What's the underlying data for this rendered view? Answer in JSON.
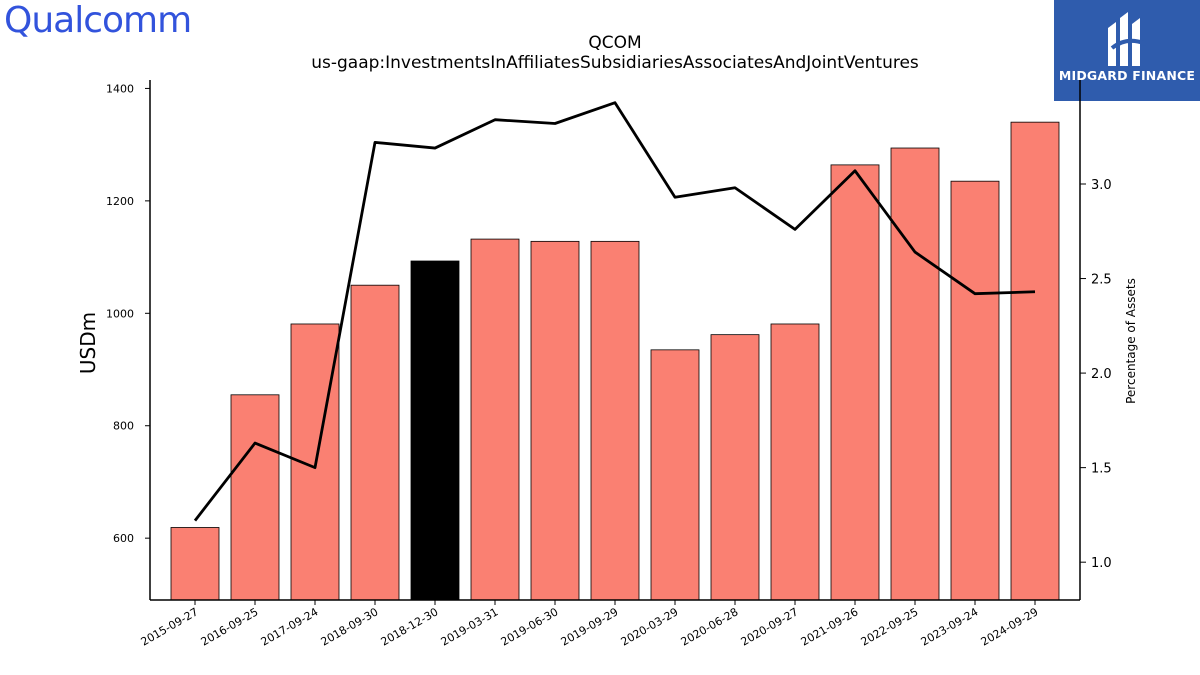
{
  "brand": {
    "left_logo": "Qualcomm",
    "right_logo": "MIDGARD FINANCE"
  },
  "chart_data": {
    "type": "bar",
    "title": "QCOM",
    "subtitle": "us-gaap:InvestmentsInAffiliatesSubsidiariesAssociatesAndJointVentures",
    "ylabel": "USDm",
    "y2label": "Percentage of Assets",
    "ylim": [
      490,
      1415
    ],
    "y2lim": [
      0.8,
      3.55
    ],
    "yticks": [
      600,
      800,
      1000,
      1200,
      1400
    ],
    "y2ticks": [
      "1.0",
      "1.5",
      "2.0",
      "2.5",
      "3.0"
    ],
    "categories": [
      "2015-09-27",
      "2016-09-25",
      "2017-09-24",
      "2018-09-30",
      "2018-12-30",
      "2019-03-31",
      "2019-06-30",
      "2019-09-29",
      "2020-03-29",
      "2020-06-28",
      "2020-09-27",
      "2021-09-26",
      "2022-09-25",
      "2023-09-24",
      "2024-09-29"
    ],
    "series": [
      {
        "type": "bar",
        "values": [
          619,
          855,
          981,
          1050,
          1093,
          1132,
          1128,
          1128,
          935,
          962,
          981,
          1264,
          1294,
          1235,
          1340
        ],
        "color": "#fa8072",
        "highlight_index": 4,
        "highlight_color": "#000000"
      },
      {
        "type": "line",
        "axis": "right",
        "values": [
          1.22,
          1.63,
          1.5,
          3.22,
          3.19,
          3.34,
          3.32,
          3.43,
          2.93,
          2.98,
          2.76,
          3.07,
          2.64,
          2.42,
          2.43
        ],
        "color": "#000000"
      }
    ]
  }
}
